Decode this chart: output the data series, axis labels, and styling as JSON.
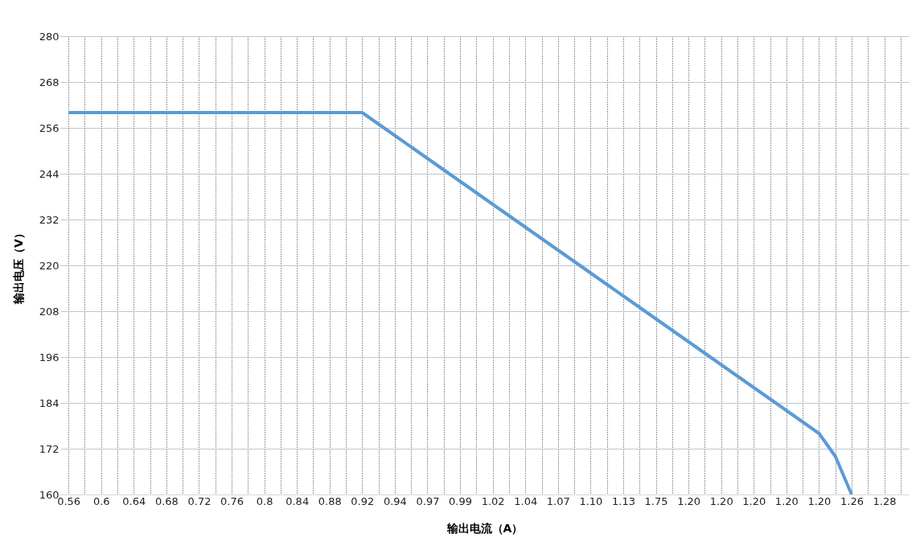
{
  "chart_data": {
    "type": "line",
    "xlabel": "输出电流（A）",
    "ylabel": "输出电压（V）",
    "categories": [
      "0.56",
      null,
      "0.6",
      null,
      "0.64",
      null,
      "0.68",
      null,
      "0.72",
      null,
      "0.76",
      null,
      "0.8",
      null,
      "0.84",
      null,
      "0.88",
      null,
      "0.92",
      null,
      "0.94",
      null,
      "0.97",
      null,
      "0.99",
      null,
      "1.02",
      null,
      "1.04",
      null,
      "1.07",
      null,
      "1.10",
      null,
      "1.13",
      null,
      "1.75",
      null,
      "1.20",
      null,
      "1.20",
      null,
      "1.20",
      null,
      "1.20",
      null,
      "1.20",
      null,
      "1.26",
      null,
      "1.28",
      null
    ],
    "series": [
      {
        "color": "#5b9bd5",
        "values": [
          260,
          260,
          260,
          260,
          260,
          260,
          260,
          260,
          260,
          260,
          260,
          260,
          260,
          260,
          260,
          260,
          260,
          260,
          260,
          257,
          254,
          251,
          248,
          245,
          242,
          239,
          236,
          233,
          230,
          227,
          224,
          221,
          218,
          215,
          212,
          209,
          206,
          203,
          200,
          197,
          194,
          191,
          188,
          185,
          182,
          179,
          176,
          170,
          160,
          null,
          null,
          null
        ]
      }
    ],
    "ylim": [
      160,
      280
    ],
    "yticks": [
      160,
      172,
      184,
      196,
      208,
      220,
      232,
      244,
      256,
      268,
      280
    ],
    "grid": true,
    "marker": "none",
    "line_style": "solid"
  }
}
